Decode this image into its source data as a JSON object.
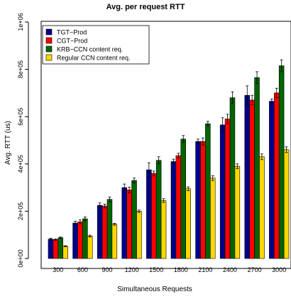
{
  "chart_data": {
    "type": "bar",
    "title": "Avg. per request RTT",
    "xlabel": "Simultaneous Requests",
    "ylabel": "Avg. RTT (us)",
    "ylim": [
      0,
      1000000
    ],
    "yticks": [
      0,
      200000,
      400000,
      600000,
      800000,
      1000000
    ],
    "ytick_labels": [
      "0e+00",
      "2e+05",
      "4e+05",
      "6e+05",
      "8e+05",
      "1e+06"
    ],
    "categories": [
      "300",
      "600",
      "900",
      "1200",
      "1500",
      "1800",
      "2100",
      "2400",
      "2700",
      "3000"
    ],
    "legend_position": "top-left",
    "series": [
      {
        "name": "TGT−Prod",
        "color": "#00008B",
        "values": [
          82000,
          150000,
          225000,
          300000,
          375000,
          410000,
          495000,
          565000,
          690000,
          665000
        ],
        "errors": [
          4000,
          8000,
          10000,
          15000,
          30000,
          10000,
          10000,
          30000,
          40000,
          10000
        ]
      },
      {
        "name": "CGT−Prod",
        "color": "#FF0000",
        "values": [
          80000,
          155000,
          222000,
          290000,
          360000,
          435000,
          495000,
          590000,
          670000,
          700000
        ],
        "errors": [
          3000,
          8000,
          8000,
          12000,
          10000,
          10000,
          15000,
          20000,
          20000,
          20000
        ]
      },
      {
        "name": "KRB−CCN content req.",
        "color": "#006400",
        "values": [
          88000,
          168000,
          250000,
          330000,
          415000,
          505000,
          570000,
          680000,
          765000,
          815000
        ],
        "errors": [
          3000,
          8000,
          10000,
          10000,
          15000,
          15000,
          10000,
          25000,
          25000,
          25000
        ]
      },
      {
        "name": "Regular CCN content req.",
        "color": "#FFD700",
        "values": [
          52000,
          95000,
          145000,
          200000,
          245000,
          295000,
          340000,
          390000,
          430000,
          460000
        ],
        "errors": [
          2000,
          4000,
          4000,
          5000,
          8000,
          8000,
          10000,
          10000,
          12000,
          12000
        ]
      }
    ]
  }
}
